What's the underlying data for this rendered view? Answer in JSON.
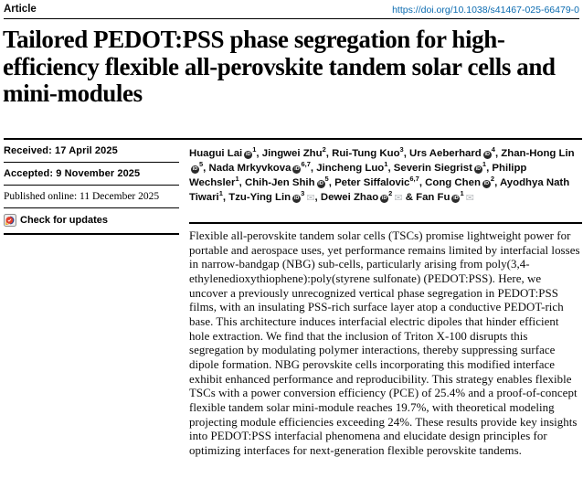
{
  "header": {
    "article_label": "Article",
    "doi": "https://doi.org/10.1038/s41467-025-66479-0"
  },
  "title": "Tailored PEDOT:PSS phase segregation for high-efficiency flexible all-perovskite tandem solar cells and mini-modules",
  "sidebar": {
    "received": "Received: 17 April 2025",
    "accepted": "Accepted: 9 November 2025",
    "published_online": "Published online: 11 December 2025",
    "check_updates_label": "Check for updates"
  },
  "authors": {
    "separator": ", ",
    "last_separator": " & ",
    "orcid_icon_text": "iD",
    "email_icon_glyph": "✉",
    "list": [
      {
        "name": "Huagui Lai",
        "sup": "1",
        "orcid": true
      },
      {
        "name": "Jingwei Zhu",
        "sup": "2"
      },
      {
        "name": "Rui-Tung Kuo",
        "sup": "3"
      },
      {
        "name": "Urs Aeberhard",
        "sup": "4",
        "orcid": true
      },
      {
        "name": "Zhan-Hong Lin",
        "sup": "5",
        "orcid": true
      },
      {
        "name": "Nada Mrkyvkova",
        "sup": "6,7",
        "orcid": true
      },
      {
        "name": "Jincheng Luo",
        "sup": "1"
      },
      {
        "name": "Severin Siegrist",
        "sup": "1",
        "orcid": true
      },
      {
        "name": "Philipp Wechsler",
        "sup": "1"
      },
      {
        "name": "Chih-Jen Shih",
        "sup": "5",
        "orcid": true
      },
      {
        "name": "Peter Siffalovic",
        "sup": "6,7"
      },
      {
        "name": "Cong Chen",
        "sup": "2",
        "orcid": true
      },
      {
        "name": "Ayodhya Nath Tiwari",
        "sup": "1"
      },
      {
        "name": "Tzu-Ying Lin",
        "sup": "3",
        "orcid": true,
        "email": true
      },
      {
        "name": "Dewei Zhao",
        "sup": "2",
        "orcid": true,
        "email": true
      },
      {
        "name": "Fan Fu",
        "sup": "1",
        "orcid": true,
        "email": true
      }
    ]
  },
  "abstract": "Flexible all-perovskite tandem solar cells (TSCs) promise lightweight power for portable and aerospace uses, yet performance remains limited by interfacial losses in narrow-bandgap (NBG) sub-cells, particularly arising from poly(3,4-ethylenedioxythiophene):poly(styrene sulfonate) (PEDOT:PSS). Here, we uncover a previously unrecognized vertical phase segregation in PEDOT:PSS films, with an insulating PSS-rich surface layer atop a conductive PEDOT-rich base. This architecture induces interfacial electric dipoles that hinder efficient hole extraction. We find that the inclusion of Triton X-100 disrupts this segregation by modulating polymer interactions, thereby suppressing surface dipole formation. NBG perovskite cells incorporating this modified interface exhibit enhanced performance and reproducibility. This strategy enables flexible TSCs with a power conversion efficiency (PCE) of 25.4% and a proof-of-concept flexible tandem solar mini-module reaches 19.7%, with theoretical modeling projecting module efficiencies exceeding 24%. These results provide key insights into PEDOT:PSS interfacial phenomena and elucidate design principles for optimizing interfaces for next-generation flexible perovskite tandems.",
  "colors": {
    "doi_link": "#0b6bb0",
    "rule": "#000000",
    "crossmark_red": "#e23e2b",
    "crossmark_blue": "#2b3f90",
    "crossmark_yellow": "#eab02e"
  }
}
